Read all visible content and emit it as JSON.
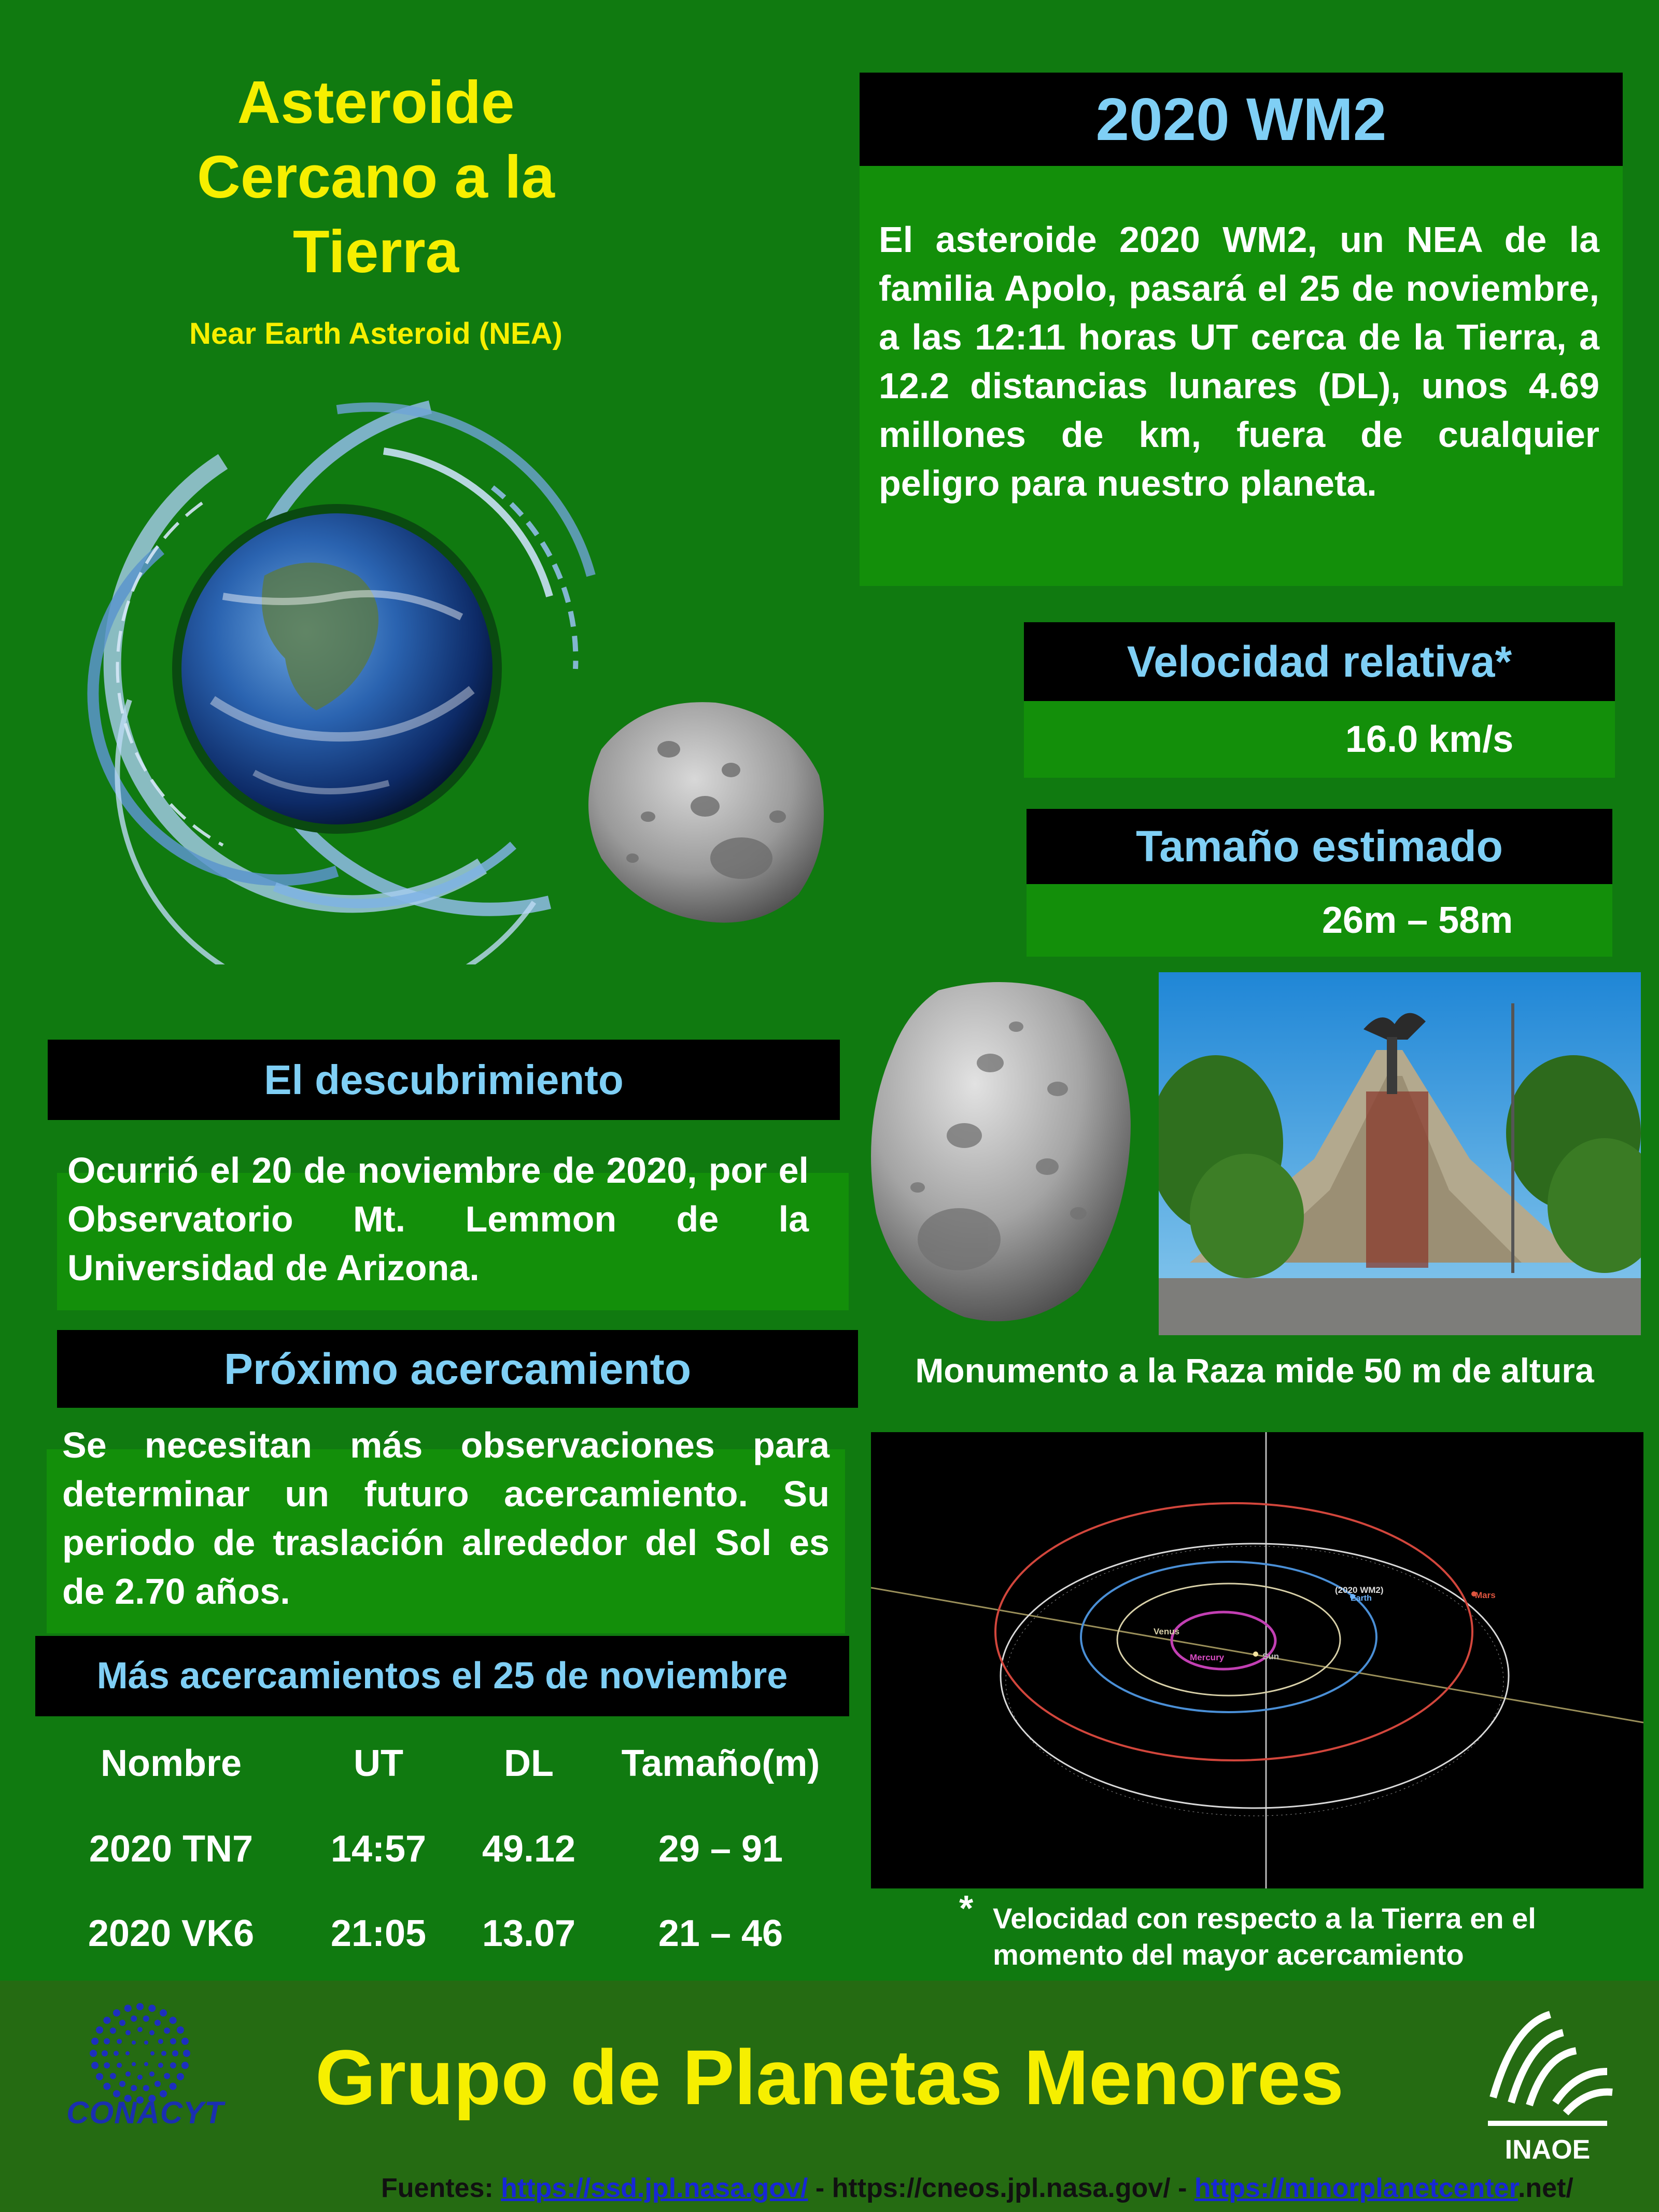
{
  "header": {
    "title": "Asteroide Cercano a la Tierra",
    "title_lines": [
      "Asteroide",
      "Cercano a la",
      "Tierra"
    ],
    "subtitle": "Near Earth Asteroid (NEA)"
  },
  "asteroid": {
    "name": "2020 WM2",
    "description": "El asteroide 2020 WM2, un NEA de la familia Apolo, pasará el 25 de noviembre, a las 12:11 horas UT cerca de la Tierra, a 12.2 distancias lunares (DL), unos 4.69 millones de km, fuera de cualquier peligro para nuestro planeta."
  },
  "velocity": {
    "label": "Velocidad relativa*",
    "value": "16.0 km/s"
  },
  "size": {
    "label": "Tamaño estimado",
    "value": "26m – 58m"
  },
  "discovery": {
    "label": "El descubrimiento",
    "text": "Ocurrió el 20 de noviembre de 2020, por el Observatorio Mt. Lemmon de la Universidad de Arizona."
  },
  "next_approach": {
    "label": "Próximo acercamiento",
    "text": "Se necesitan más observaciones para determinar un futuro acercamiento. Su periodo de traslación alrededor del Sol es de 2.70 años."
  },
  "more_approaches": {
    "label": "Más acercamientos el 25 de noviembre",
    "headers": [
      "Nombre",
      "UT",
      "DL",
      "Tamaño(m)"
    ],
    "rows": [
      [
        "2020 TN7",
        "14:57",
        "49.12",
        "29 – 91"
      ],
      [
        "2020 VK6",
        "21:05",
        "13.07",
        "21 – 46"
      ]
    ]
  },
  "monument_caption": "Monumento a la Raza mide 50 m de altura",
  "orbit_labels": {
    "asteroid": "(2020 WM2)",
    "earth": "Earth",
    "mars": "Mars",
    "venus": "Venus",
    "mercury": "Mercury",
    "sun": "Sun"
  },
  "footnote": {
    "star": "*",
    "text": "Velocidad con respecto a la Tierra en el momento del mayor acercamiento"
  },
  "footer": {
    "title": "Grupo de Planetas Menores",
    "conacyt_label": "CONACYT",
    "inaoe_label": "INAOE",
    "sources_prefix": "Fuentes: ",
    "source_1": "https://ssd.jpl.nasa.gov/",
    "sep_1": " - https://cneos.jpl.nasa.gov/ - ",
    "source_3": "https://minorplanetcenter",
    "source_3_tail": ".net/"
  },
  "colors": {
    "background": "#107a10",
    "panel_green": "#138f0a",
    "title_yellow": "#f6ef00",
    "heading_blue": "#7fcff5",
    "footer_green": "#256b12"
  }
}
